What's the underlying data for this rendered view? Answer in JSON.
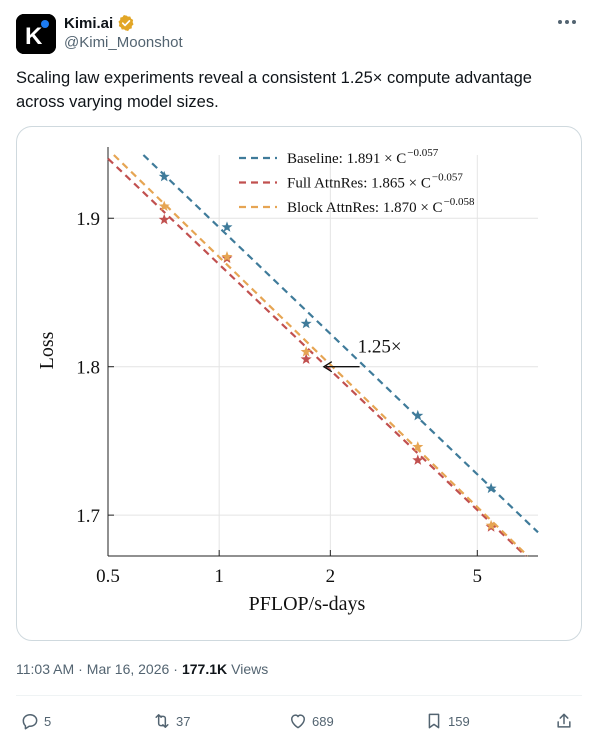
{
  "author": {
    "name": "Kimi.ai",
    "handle": "@Kimi_Moonshot",
    "verified_color": "#e2a626",
    "avatar_letter": "K",
    "avatar_dot_color": "#1d7bf0"
  },
  "tweet": {
    "text_line1": "Scaling law experiments reveal a consistent 1.25× compute advantage",
    "text_line2": "across varying model sizes."
  },
  "meta": {
    "time": "11:03 AM",
    "sep1": "·",
    "date": "Mar 16, 2026",
    "sep2": "·",
    "views_count": "177.1K",
    "views_label": "Views"
  },
  "actions": {
    "reply_count": "5",
    "retweet_count": "37",
    "like_count": "689",
    "bookmark_count": "159"
  },
  "icons": {
    "more": "more-icon",
    "verified": "verified-badge-icon",
    "reply": "reply-icon",
    "retweet": "retweet-icon",
    "like": "heart-icon",
    "bookmark": "bookmark-icon",
    "share": "share-icon"
  },
  "chart_data": {
    "type": "line",
    "xlabel": "PFLOP/s-days",
    "ylabel": "Loss",
    "xscale": "log",
    "xlim": [
      0.5,
      7.3
    ],
    "ylim": [
      1.6725,
      1.9426
    ],
    "x_ticks": [
      0.5,
      1,
      2,
      5
    ],
    "x_tick_labels": [
      "0.5",
      "1",
      "2",
      "5"
    ],
    "y_ticks": [
      1.7,
      1.8,
      1.9
    ],
    "y_tick_labels": [
      "1.7",
      "1.8",
      "1.9"
    ],
    "grid": true,
    "legend_position": "top-right",
    "annotation": {
      "text": "1.25×",
      "from_x": 2.4,
      "to_x": 1.92,
      "y": 1.8
    },
    "series": [
      {
        "name": "Baseline: 1.891 × C",
        "exponent": "−0.057",
        "color": "#3f7b9a",
        "fit": {
          "a": 1.891,
          "b": -0.057
        },
        "points": [
          [
            0.71,
            1.928
          ],
          [
            1.05,
            1.894
          ],
          [
            1.72,
            1.829
          ],
          [
            3.45,
            1.767
          ],
          [
            5.45,
            1.718
          ]
        ]
      },
      {
        "name": "Full AttnRes: 1.865 × C",
        "exponent": "−0.057",
        "color": "#c1504f",
        "fit": {
          "a": 1.865,
          "b": -0.057
        },
        "points": [
          [
            0.71,
            1.899
          ],
          [
            1.05,
            1.873
          ],
          [
            1.72,
            1.805
          ],
          [
            3.45,
            1.737
          ],
          [
            5.45,
            1.692
          ]
        ]
      },
      {
        "name": "Block AttnRes: 1.870 × C",
        "exponent": "−0.058",
        "color": "#e6a553",
        "fit": {
          "a": 1.87,
          "b": -0.058
        },
        "points": [
          [
            0.71,
            1.908
          ],
          [
            1.05,
            1.874
          ],
          [
            1.72,
            1.81
          ],
          [
            3.45,
            1.746
          ],
          [
            5.45,
            1.693
          ]
        ]
      }
    ]
  }
}
